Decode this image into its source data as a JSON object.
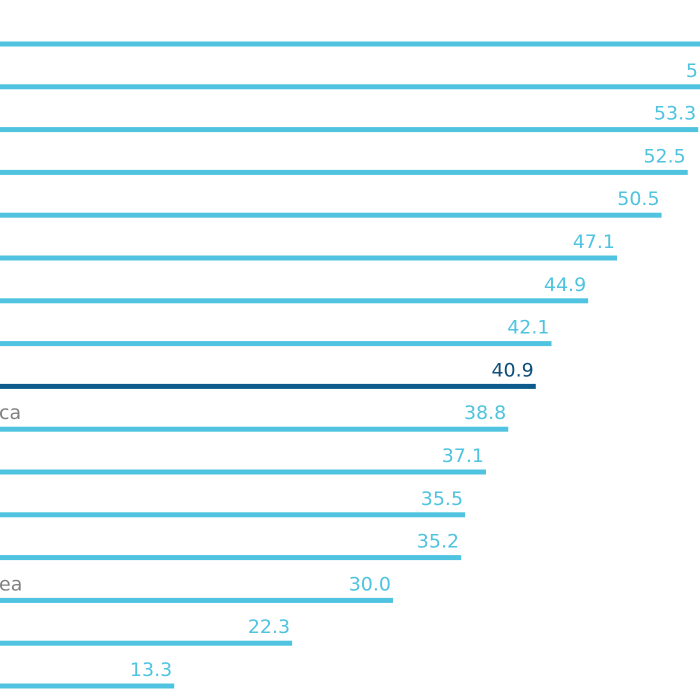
{
  "chart_data": {
    "type": "bar",
    "orientation": "horizontal",
    "categories": [
      "",
      "",
      "",
      "",
      "",
      "",
      "",
      "",
      "",
      "ca",
      "",
      "",
      "",
      "ea",
      "",
      ""
    ],
    "values": [
      null,
      null,
      53.3,
      52.5,
      50.5,
      47.1,
      44.9,
      42.1,
      40.9,
      38.8,
      37.1,
      35.5,
      35.2,
      30.0,
      22.3,
      13.3
    ],
    "value_labels": [
      "",
      "5",
      "53.3",
      "52.5",
      "50.5",
      "47.1",
      "44.9",
      "42.1",
      "40.9",
      "38.8",
      "37.1",
      "35.5",
      "35.2",
      "30.0",
      "22.3",
      "13.3"
    ],
    "highlight_index": 8,
    "xlim": [
      0,
      60
    ],
    "grid": false,
    "legend": "none",
    "title": "",
    "xlabel": "",
    "ylabel": ""
  },
  "colors": {
    "bar": "#4fc3df",
    "highlight": "#0d5a8c",
    "label": "#4fc3df",
    "highlight_label": "#0d4f7a",
    "category_text": "#808080",
    "background": "#ffffff"
  }
}
